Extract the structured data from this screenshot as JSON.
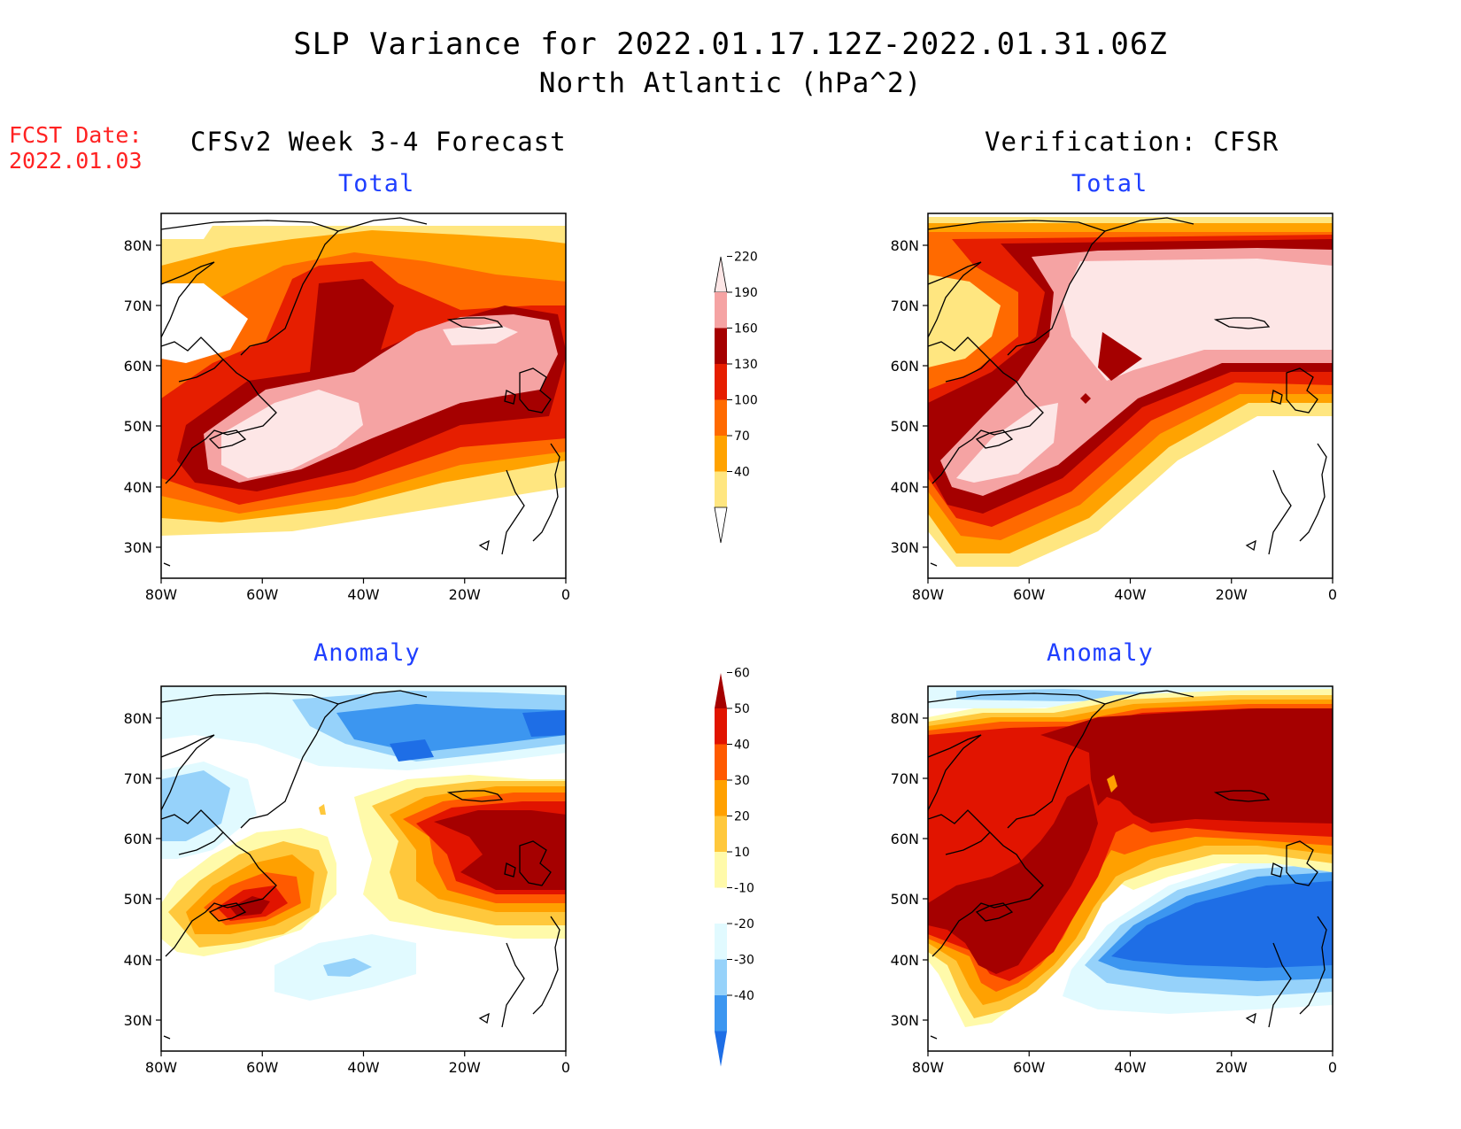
{
  "header": {
    "title": "SLP Variance for 2022.01.17.12Z-2022.01.31.06Z",
    "subtitle": "North Atlantic (hPa^2)",
    "fcst_label": "FCST Date:",
    "fcst_value": "2022.01.03"
  },
  "columns": {
    "left": "CFSv2 Week 3-4 Forecast",
    "right": "Verification: CFSR"
  },
  "panels": {
    "total_label": "Total",
    "anomaly_label": "Anomaly"
  },
  "axes": {
    "lat_ticks": [
      "80N",
      "70N",
      "60N",
      "50N",
      "40N",
      "30N"
    ],
    "lon_ticks": [
      "80W",
      "60W",
      "40W",
      "20W",
      "0"
    ]
  },
  "colorbars": {
    "total": {
      "levels": [
        "40",
        "70",
        "100",
        "130",
        "160",
        "190",
        "220"
      ],
      "colors": [
        "#ffe680",
        "#ffa200",
        "#ff6a00",
        "#e61e00",
        "#a50000",
        "#f5a3a3",
        "#fde6e6"
      ]
    },
    "anomaly": {
      "levels": [
        "-40",
        "-30",
        "-20",
        "-10",
        "10",
        "20",
        "30",
        "40",
        "50",
        "60"
      ],
      "colors": [
        "#1e6ee6",
        "#3c96f0",
        "#96d2fa",
        "#e1faff",
        "#ffffff",
        "#fffaaa",
        "#ffc83c",
        "#ffa000",
        "#ff5a00",
        "#e11400",
        "#a50000"
      ]
    }
  }
}
